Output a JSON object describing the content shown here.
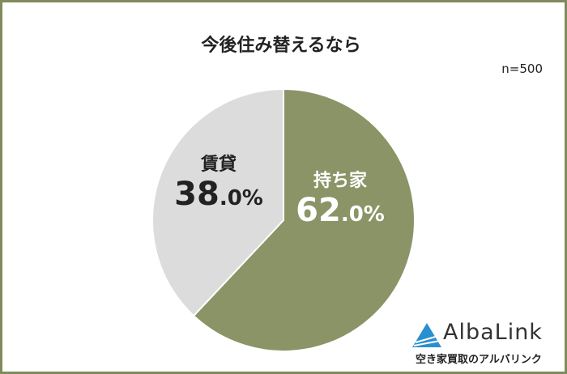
{
  "chart_data": {
    "type": "pie",
    "title": "今後住み替えるなら",
    "note": "n=500",
    "slices": [
      {
        "label": "持ち家",
        "value": 62.0,
        "display_main": "62",
        "display_dec": ".0%",
        "color": "#8a9466",
        "text_color": "#ffffff"
      },
      {
        "label": "賃貸",
        "value": 38.0,
        "display_main": "38",
        "display_dec": ".0%",
        "color": "#dcdcdc",
        "text_color": "#222222"
      }
    ]
  },
  "logo": {
    "brand": "AlbaLink",
    "tagline": "空き家買取のアルバリンク"
  }
}
